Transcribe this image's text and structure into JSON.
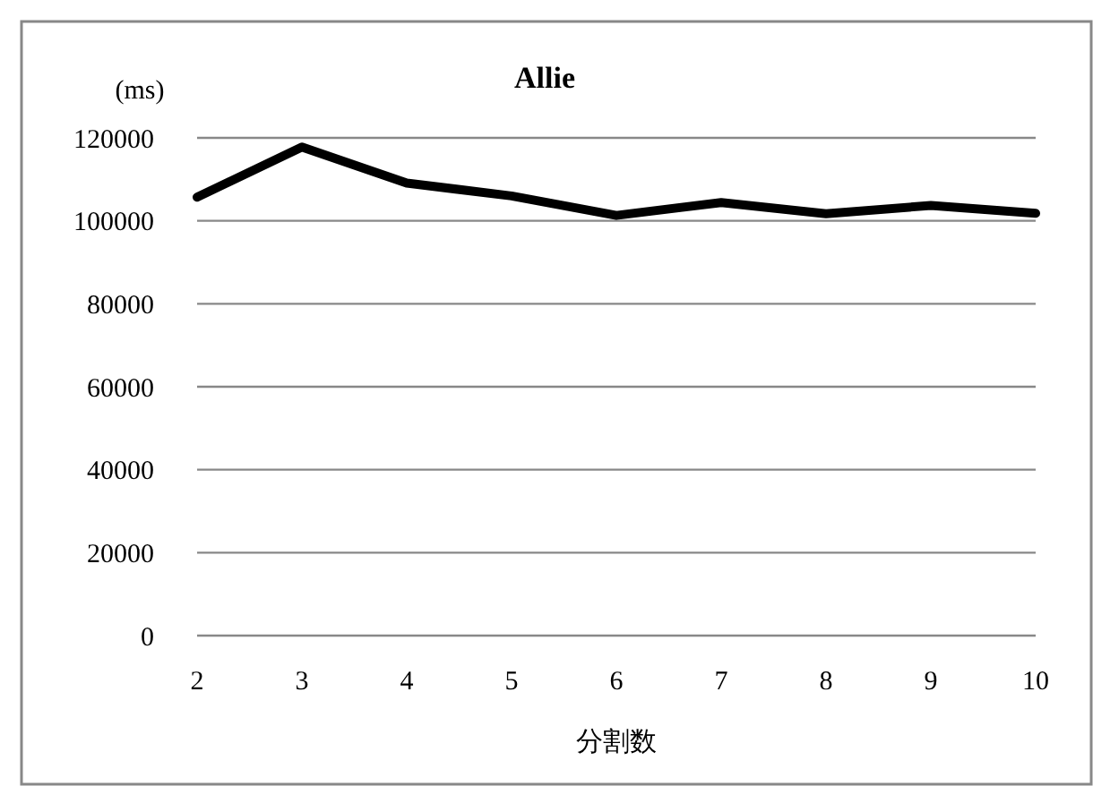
{
  "chart_data": {
    "type": "line",
    "title": "Allie",
    "ylabel": "(ms)",
    "xlabel": "分割数",
    "categories": [
      "2",
      "3",
      "4",
      "5",
      "6",
      "7",
      "8",
      "9",
      "10"
    ],
    "series": [
      {
        "color": "#000000",
        "values": [
          105700,
          117800,
          109100,
          106000,
          101300,
          104400,
          101700,
          103700,
          101800
        ]
      }
    ],
    "ylim": [
      0,
      120000
    ],
    "yticks": [
      0,
      20000,
      40000,
      60000,
      80000,
      100000,
      120000
    ],
    "grid": "y",
    "marker": "none",
    "line_style": "solid"
  }
}
